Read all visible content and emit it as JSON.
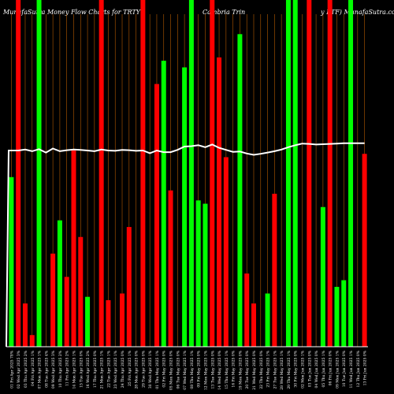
{
  "chart_data": {
    "type": "bar",
    "title_left": "MunafaSutra  Money Flow  Charts for TRTY",
    "title_mid": "Cambria Trin",
    "title_right": "y ETF) MunafaSutra.com",
    "categories": [
      "01 Fri Apr 2025 78%",
      "02 Wed Apr 2025 3%",
      "03 Thu Apr 2025 2%",
      "04 Fri Apr 2025 1%",
      "07 Mon Apr 2025 1%",
      "08 Tue Apr 2025 4%",
      "09 Wed Apr 2025 3%",
      "10 Thu Apr 2025 2%",
      "11 Fri Apr 2025 2%",
      "14 Mon Apr 2025 1%",
      "15 Tue Apr 2025 0%",
      "16 Wed Apr 2025 2%",
      "17 Thu Apr 2025 0%",
      "21 Mon Apr 2025 1%",
      "22 Tue Apr 2025 1%",
      "23 Wed Apr 2025 1%",
      "24 Thu Apr 2025 0%",
      "25 Fri Apr 2025 1%",
      "28 Mon Apr 2025 0%",
      "29 Tue Apr 2025 0%",
      "30 Wed Apr 2025 1%",
      "01 Thu May 2025 1%",
      "02 Fri May 2025 0%",
      "05 Mon May 2025 0%",
      "06 Tue May 2025 0%",
      "07 Wed May 2025 1%",
      "08 Thu May 2025 1%",
      "09 Fri May 2025 0%",
      "12 Mon May 2025 1%",
      "13 Tue May 2025 0%",
      "14 Wed May 2025 0%",
      "15 Thu May 2025 1%",
      "16 Fri May 2025 0%",
      "19 Mon May 2025 0%",
      "20 Tue May 2025 0%",
      "21 Wed May 2025 0%",
      "22 Thu May 2025 0%",
      "23 Fri May 2025 1%",
      "27 Tue May 2025 1%",
      "28 Wed May 2025 1%",
      "29 Thu May 2025 1%",
      "30 Fri May 2025 0%",
      "02 Mon Jun 2025 1%",
      "03 Tue Jun 2025 0%",
      "04 Wed Jun 2025 0%",
      "05 Thu Jun 2025 1%",
      "06 Fri Jun 2025 0%",
      "09 Mon Jun 2025 1%",
      "10 Tue Jun 2025 0%",
      "11 Wed Jun 2025 1%",
      "12 Thu Jun 2025 0%",
      "13 Fri Jun 2025 0%"
    ],
    "bars": [
      {
        "v": 0.51,
        "c": "green"
      },
      {
        "v": 1.0,
        "c": "red"
      },
      {
        "v": 0.13,
        "c": "red"
      },
      {
        "v": 0.035,
        "c": "red"
      },
      {
        "v": 1.0,
        "c": "green"
      },
      {
        "v": 0.0,
        "c": "none"
      },
      {
        "v": 0.28,
        "c": "red"
      },
      {
        "v": 0.38,
        "c": "green"
      },
      {
        "v": 0.21,
        "c": "red"
      },
      {
        "v": 0.59,
        "c": "red"
      },
      {
        "v": 0.33,
        "c": "red"
      },
      {
        "v": 0.15,
        "c": "green"
      },
      {
        "v": 0.0,
        "c": "none"
      },
      {
        "v": 1.0,
        "c": "red"
      },
      {
        "v": 0.14,
        "c": "red"
      },
      {
        "v": 0.0,
        "c": "none"
      },
      {
        "v": 0.16,
        "c": "red"
      },
      {
        "v": 0.36,
        "c": "red"
      },
      {
        "v": 0.0,
        "c": "none"
      },
      {
        "v": 1.0,
        "c": "red"
      },
      {
        "v": 0.0,
        "c": "none"
      },
      {
        "v": 0.79,
        "c": "red"
      },
      {
        "v": 0.86,
        "c": "green"
      },
      {
        "v": 0.47,
        "c": "red"
      },
      {
        "v": 0.0,
        "c": "none"
      },
      {
        "v": 0.84,
        "c": "green"
      },
      {
        "v": 1.0,
        "c": "green"
      },
      {
        "v": 0.44,
        "c": "green"
      },
      {
        "v": 0.43,
        "c": "green"
      },
      {
        "v": 1.0,
        "c": "red"
      },
      {
        "v": 0.87,
        "c": "red"
      },
      {
        "v": 0.57,
        "c": "red"
      },
      {
        "v": 0.0,
        "c": "none"
      },
      {
        "v": 0.94,
        "c": "green"
      },
      {
        "v": 0.22,
        "c": "red"
      },
      {
        "v": 0.13,
        "c": "red"
      },
      {
        "v": 0.0,
        "c": "none"
      },
      {
        "v": 0.16,
        "c": "green"
      },
      {
        "v": 0.46,
        "c": "red"
      },
      {
        "v": 0.0,
        "c": "none"
      },
      {
        "v": 1.0,
        "c": "green"
      },
      {
        "v": 1.0,
        "c": "green"
      },
      {
        "v": 0.0,
        "c": "none"
      },
      {
        "v": 1.0,
        "c": "red"
      },
      {
        "v": 0.0,
        "c": "none"
      },
      {
        "v": 0.42,
        "c": "green"
      },
      {
        "v": 1.0,
        "c": "red"
      },
      {
        "v": 0.18,
        "c": "green"
      },
      {
        "v": 0.2,
        "c": "green"
      },
      {
        "v": 1.0,
        "c": "green"
      },
      {
        "v": 0.0,
        "c": "none"
      },
      {
        "v": 0.58,
        "c": "red"
      }
    ],
    "line": [
      0.0,
      0.59,
      0.59,
      0.59,
      0.59,
      0.59,
      0.59,
      0.59,
      0.59,
      0.59,
      0.59,
      0.59,
      0.59,
      0.59,
      0.59,
      0.59,
      0.59,
      0.59,
      0.59,
      0.59,
      0.59,
      0.59,
      0.59,
      0.59,
      0.59,
      0.59,
      0.59,
      0.59,
      0.59,
      0.59,
      0.59,
      0.59,
      0.59,
      0.59,
      0.59,
      0.59,
      0.59,
      0.59,
      0.59,
      0.59,
      0.59,
      0.59,
      0.59,
      0.59,
      0.59,
      0.59,
      0.59,
      0.59,
      0.59,
      0.59,
      0.59,
      0.59
    ],
    "ylim": [
      0,
      1
    ],
    "grid": true,
    "colors": {
      "background": "#000000",
      "green": "#00ff00",
      "red": "#ff0000",
      "line": "#ffffff",
      "grid": "#b35900",
      "axis": "#ffffff"
    }
  }
}
